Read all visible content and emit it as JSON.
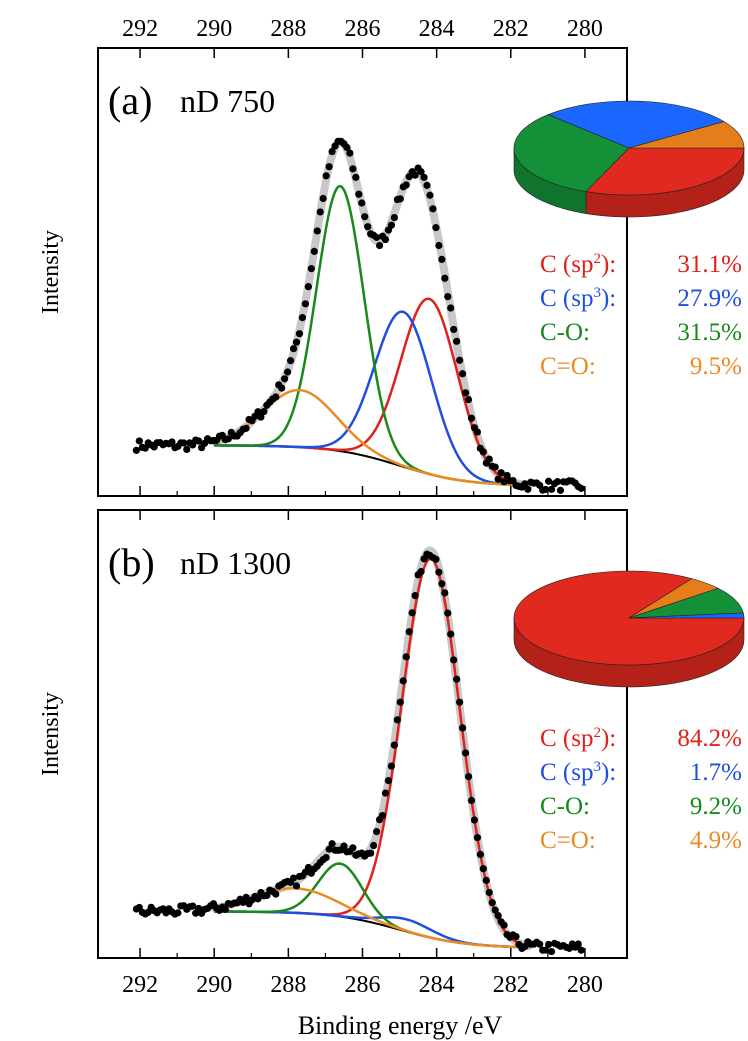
{
  "figure": {
    "xlabel": "Binding energy /eV",
    "colors": {
      "sp2": "#e0201b",
      "sp3": "#1f4fe0",
      "co": "#178a1a",
      "c_eq_o": "#ec8a24",
      "envelope": "#c8c8c8",
      "baseline": "#000000",
      "data": "#000000",
      "pie_sp2": "#e0291f",
      "pie_sp3": "#1a66ff",
      "pie_co": "#149039",
      "pie_c_eq_o": "#e57d1b"
    }
  },
  "chart_data": [
    {
      "type": "line",
      "panel": "(a)",
      "sample": "nD 750",
      "ylabel": "Intensity",
      "xlabel": "",
      "xlim": [
        293,
        279
      ],
      "x_ticks": [
        292,
        290,
        288,
        286,
        284,
        282,
        280
      ],
      "x_ticks_top": [
        "292",
        "290",
        "288",
        "286",
        "284",
        "282",
        "280"
      ],
      "x_ticks_bottom": [],
      "ylim": [
        0,
        1.05
      ],
      "baseline": {
        "left": 0.1,
        "right": 0.0,
        "midpoint": 285.0
      },
      "peaks": [
        {
          "name": "C (sp2)",
          "center": 284.2,
          "height": 0.43,
          "fwhm": 1.8,
          "key": "sp2"
        },
        {
          "name": "C (sp3)",
          "center": 284.9,
          "height": 0.38,
          "fwhm": 1.8,
          "key": "sp3"
        },
        {
          "name": "C-O",
          "center": 286.6,
          "height": 0.65,
          "fwhm": 1.5,
          "key": "co"
        },
        {
          "name": "C=O",
          "center": 287.7,
          "height": 0.14,
          "fwhm": 2.3,
          "key": "c_eq_o"
        }
      ],
      "pie": [
        {
          "name": "C (sp2)",
          "value": 31.1,
          "key": "pie_sp2"
        },
        {
          "name": "C-O",
          "value": 31.5,
          "key": "pie_co"
        },
        {
          "name": "C (sp3)",
          "value": 27.9,
          "key": "pie_sp3"
        },
        {
          "name": "C=O",
          "value": 9.5,
          "key": "pie_c_eq_o"
        }
      ],
      "legend": [
        {
          "label_main": "C (sp",
          "sup": "2",
          "label_end": "):",
          "value": "31.1%",
          "key": "sp2"
        },
        {
          "label_main": "C (sp",
          "sup": "3",
          "label_end": "):",
          "value": "27.9%",
          "key": "sp3"
        },
        {
          "label_main": "C-O:",
          "sup": "",
          "label_end": "",
          "value": "31.5%",
          "key": "co"
        },
        {
          "label_main": "C=O:",
          "sup": "",
          "label_end": "",
          "value": "9.5%",
          "key": "c_eq_o"
        }
      ]
    },
    {
      "type": "line",
      "panel": "(b)",
      "sample": "nD 1300",
      "ylabel": "Intensity",
      "xlabel": "Binding energy /eV",
      "xlim": [
        293,
        279
      ],
      "x_ticks": [
        292,
        290,
        288,
        286,
        284,
        282,
        280
      ],
      "x_ticks_top": [],
      "x_ticks_bottom": [
        "292",
        "290",
        "288",
        "286",
        "284",
        "282",
        "280"
      ],
      "ylim": [
        0,
        1.05
      ],
      "baseline": {
        "left": 0.09,
        "right": 0.0,
        "midpoint": 285.0
      },
      "peaks": [
        {
          "name": "C (sp2)",
          "center": 284.15,
          "height": 0.93,
          "fwhm": 1.85,
          "key": "sp2"
        },
        {
          "name": "C (sp3)",
          "center": 284.8,
          "height": 0.03,
          "fwhm": 1.6,
          "key": "sp3"
        },
        {
          "name": "C-O",
          "center": 286.6,
          "height": 0.13,
          "fwhm": 1.4,
          "key": "co"
        },
        {
          "name": "C=O",
          "center": 287.8,
          "height": 0.06,
          "fwhm": 2.6,
          "key": "c_eq_o"
        }
      ],
      "pie": [
        {
          "name": "C (sp2)",
          "value": 84.2,
          "key": "pie_sp2"
        },
        {
          "name": "C=O",
          "value": 4.9,
          "key": "pie_c_eq_o"
        },
        {
          "name": "C-O",
          "value": 9.2,
          "key": "pie_co"
        },
        {
          "name": "C (sp3)",
          "value": 1.7,
          "key": "pie_sp3"
        }
      ],
      "legend": [
        {
          "label_main": "C (sp",
          "sup": "2",
          "label_end": "):",
          "value": "84.2%",
          "key": "sp2"
        },
        {
          "label_main": "C (sp",
          "sup": "3",
          "label_end": "):",
          "value": "1.7%",
          "key": "sp3"
        },
        {
          "label_main": "C-O:",
          "sup": "",
          "label_end": "",
          "value": "9.2%",
          "key": "co"
        },
        {
          "label_main": "C=O:",
          "sup": "",
          "label_end": "",
          "value": "4.9%",
          "key": "c_eq_o"
        }
      ]
    }
  ]
}
